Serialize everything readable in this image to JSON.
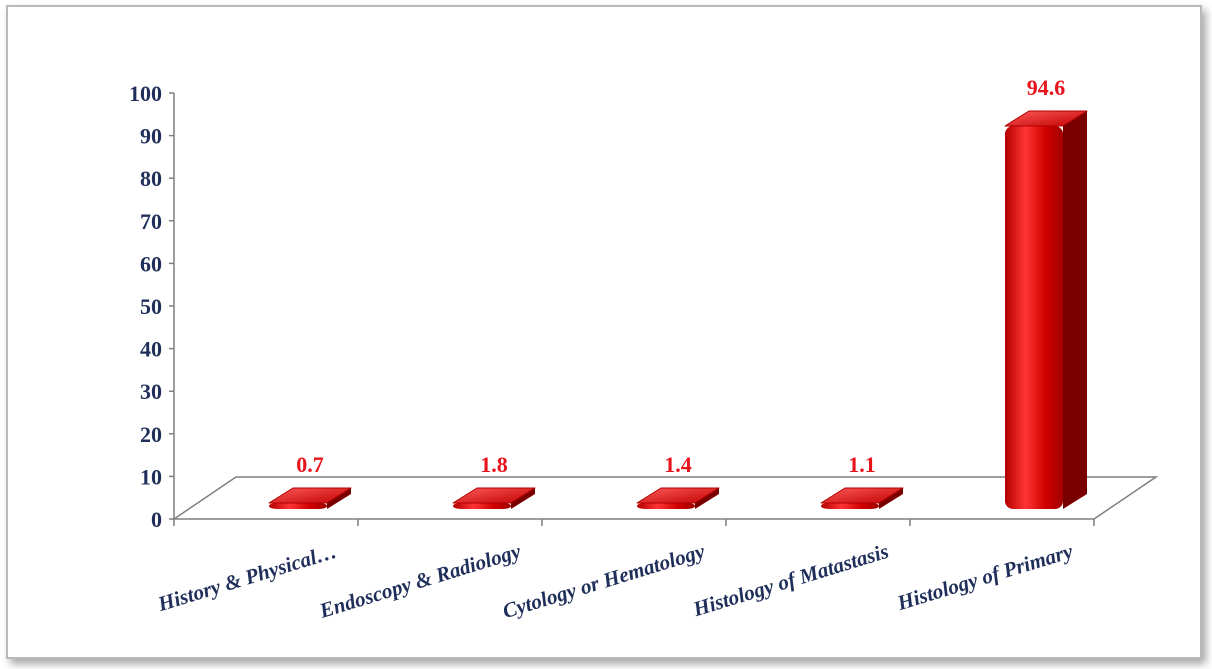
{
  "chart_data": {
    "type": "bar",
    "categories": [
      "History & Physical…",
      "Endoscopy & Radiology",
      "Cytology or Hematology",
      "Histology of Matastasis",
      "Histology of Primary"
    ],
    "values": [
      0.7,
      1.8,
      1.4,
      1.1,
      94.6
    ],
    "data_labels": [
      "0.7",
      "1.8",
      "1.4",
      "1.1",
      "94.6"
    ],
    "y_ticks": [
      "0",
      "10",
      "20",
      "30",
      "40",
      "50",
      "60",
      "70",
      "80",
      "90",
      "100"
    ],
    "ylim": [
      0,
      100
    ],
    "title": "",
    "xlabel": "",
    "ylabel": "",
    "grid": false,
    "legend": "none",
    "style": "3d-rounded",
    "colors": {
      "bar": "#cc0000",
      "bar_dark": "#7a0000",
      "bar_light": "#ff3b3b",
      "label": "#e8141b",
      "axis_text": "#1f2f5a",
      "axis_line": "#7f7f7f"
    }
  }
}
